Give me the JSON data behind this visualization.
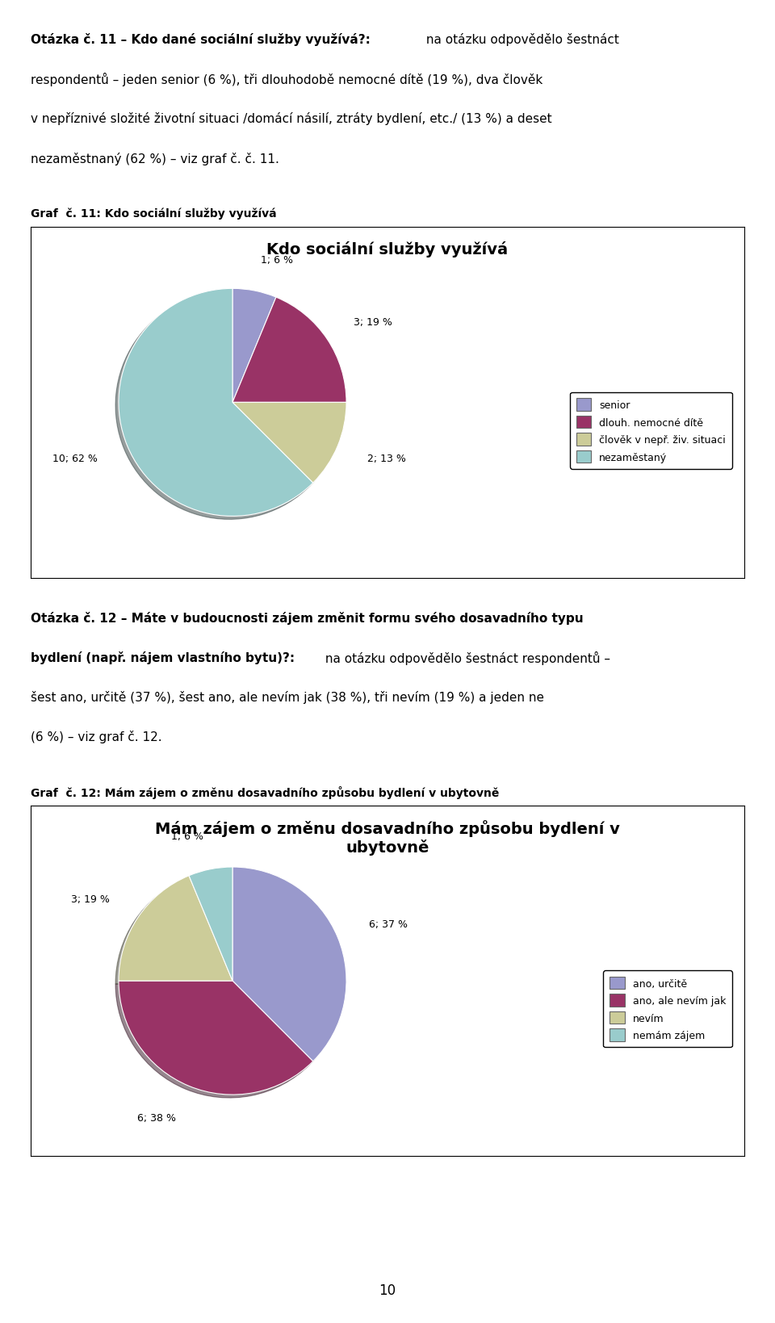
{
  "page_title": "10",
  "chart1_caption": "Graf  č. 11: Kdo sociální služby využívá",
  "chart1_title": "Kdo sociální služby využívá",
  "chart1_values": [
    1,
    3,
    2,
    10
  ],
  "chart1_labels": [
    "1; 6 %",
    "3; 19 %",
    "2; 13 %",
    "10; 62 %"
  ],
  "chart1_colors": [
    "#9999cc",
    "#993366",
    "#cccc99",
    "#99cccc"
  ],
  "chart1_legend": [
    "senior",
    "dlouh. nemocné dítě",
    "člověk v nepř. živ. situaci",
    "nezaměstaný"
  ],
  "chart2_caption": "Graf  č. 12: Mám zájem o změnu dosavadního způsobu bydlení v ubytovně",
  "chart2_title": "Mám zájem o změnu dosavadního způsobu bydlení v\nubytovně",
  "chart2_values": [
    6,
    6,
    3,
    1
  ],
  "chart2_labels": [
    "6; 37 %",
    "6; 38 %",
    "3; 19 %",
    "1; 6 %"
  ],
  "chart2_colors": [
    "#9999cc",
    "#993366",
    "#cccc99",
    "#99cccc"
  ],
  "chart2_legend": [
    "ano, určitě",
    "ano, ale nevím jak",
    "nevím",
    "nemám zájem"
  ],
  "background_color": "#ffffff",
  "text_color": "#000000"
}
